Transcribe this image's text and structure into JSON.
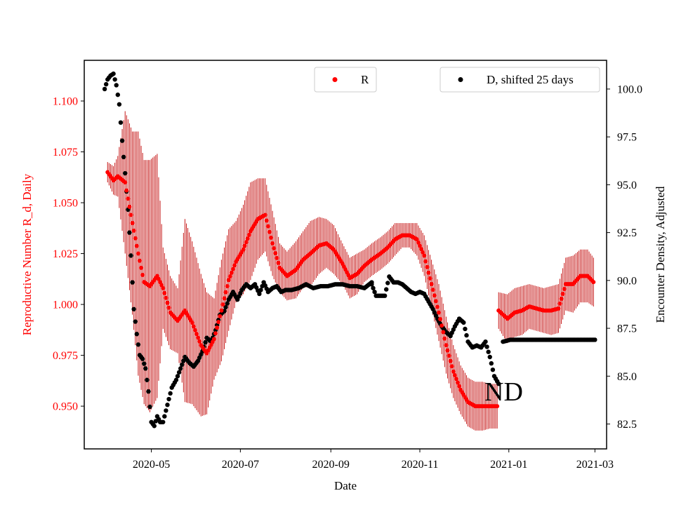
{
  "chart_data": {
    "type": "scatter",
    "xlabel": "Date",
    "ylabel_left": "Reproductive Number R_d, Daily",
    "ylabel_right": "Encounter Density, Adjusted",
    "x_range": [
      "2020-03-16",
      "2021-03-09"
    ],
    "ylim_left": [
      0.929,
      1.12
    ],
    "ylim_right": [
      81.2,
      101.5
    ],
    "x_ticks": [
      "2020-05",
      "2020-07",
      "2020-09",
      "2020-11",
      "2021-01",
      "2021-03"
    ],
    "y_ticks_left": [
      "0.950",
      "0.975",
      "1.000",
      "1.025",
      "1.050",
      "1.075",
      "1.100"
    ],
    "y_ticks_right": [
      "82.5",
      "85.0",
      "87.5",
      "90.0",
      "92.5",
      "95.0",
      "97.5",
      "100.0"
    ],
    "annotation": "ND",
    "legend": {
      "left": {
        "label": "R",
        "placement": "top-center"
      },
      "right": {
        "label": "D, shifted 25 days",
        "placement": "top-right"
      }
    },
    "colors": {
      "R": "#ff0000",
      "R_error": "#c00000",
      "D": "#000000",
      "left_axis": "#ff0000",
      "right_axis": "#000000"
    },
    "series": [
      {
        "name": "R",
        "axis": "left",
        "style": "dots_with_errorbars",
        "segments": [
          {
            "x": [
              "2020-04-01",
              "2020-04-05",
              "2020-04-08",
              "2020-04-13",
              "2020-04-18",
              "2020-04-22",
              "2020-04-26",
              "2020-04-30",
              "2020-05-05",
              "2020-05-09",
              "2020-05-14",
              "2020-05-19",
              "2020-05-24",
              "2020-05-29",
              "2020-06-04",
              "2020-06-08",
              "2020-06-13",
              "2020-06-18",
              "2020-06-23",
              "2020-06-28",
              "2020-07-03",
              "2020-07-08",
              "2020-07-13",
              "2020-07-18",
              "2020-07-23",
              "2020-07-28",
              "2020-08-02",
              "2020-08-08",
              "2020-08-13",
              "2020-08-18",
              "2020-08-24",
              "2020-08-29",
              "2020-09-03",
              "2020-09-09",
              "2020-09-14",
              "2020-09-19",
              "2020-09-24",
              "2020-09-29",
              "2020-10-05",
              "2020-10-10",
              "2020-10-15",
              "2020-10-20",
              "2020-10-25",
              "2020-10-30",
              "2020-11-04",
              "2020-11-09",
              "2020-11-14",
              "2020-11-19",
              "2020-11-24",
              "2020-11-29",
              "2020-12-04",
              "2020-12-09",
              "2020-12-14",
              "2020-12-19",
              "2020-12-24"
            ],
            "y": [
              1.065,
              1.061,
              1.063,
              1.06,
              1.04,
              1.025,
              1.011,
              1.009,
              1.014,
              1.008,
              0.996,
              0.992,
              0.997,
              0.991,
              0.98,
              0.976,
              0.983,
              0.997,
              1.012,
              1.021,
              1.027,
              1.036,
              1.042,
              1.044,
              1.03,
              1.018,
              1.014,
              1.017,
              1.022,
              1.025,
              1.029,
              1.03,
              1.027,
              1.02,
              1.013,
              1.015,
              1.019,
              1.022,
              1.025,
              1.028,
              1.032,
              1.034,
              1.034,
              1.032,
              1.024,
              1.01,
              0.996,
              0.98,
              0.967,
              0.958,
              0.952,
              0.95,
              0.95,
              0.95,
              0.95
            ],
            "err": [
              0.005,
              0.007,
              0.01,
              0.035,
              0.045,
              0.06,
              0.06,
              0.062,
              0.06,
              0.02,
              0.018,
              0.016,
              0.045,
              0.04,
              0.035,
              0.03,
              0.02,
              0.025,
              0.025,
              0.02,
              0.022,
              0.024,
              0.02,
              0.018,
              0.016,
              0.012,
              0.012,
              0.014,
              0.014,
              0.016,
              0.014,
              0.012,
              0.012,
              0.01,
              0.01,
              0.01,
              0.008,
              0.008,
              0.008,
              0.008,
              0.008,
              0.006,
              0.006,
              0.008,
              0.01,
              0.012,
              0.014,
              0.014,
              0.013,
              0.012,
              0.012,
              0.012,
              0.012,
              0.011,
              0.011
            ]
          },
          {
            "x": [
              "2020-12-25",
              "2020-12-31",
              "2021-01-05",
              "2021-01-10",
              "2021-01-15",
              "2021-01-20",
              "2021-01-25",
              "2021-01-30",
              "2021-02-04",
              "2021-02-09",
              "2021-02-14",
              "2021-02-19",
              "2021-02-24",
              "2021-02-28"
            ],
            "y": [
              0.997,
              0.993,
              0.996,
              0.997,
              0.999,
              0.998,
              0.997,
              0.997,
              0.998,
              1.01,
              1.01,
              1.014,
              1.014,
              1.011
            ],
            "err": [
              0.009,
              0.012,
              0.012,
              0.012,
              0.011,
              0.011,
              0.011,
              0.012,
              0.012,
              0.013,
              0.014,
              0.013,
              0.013,
              0.012
            ]
          }
        ]
      },
      {
        "name": "D, shifted 25 days",
        "axis": "right",
        "style": "dots",
        "segments": [
          {
            "x": [
              "2020-03-30",
              "2020-04-01",
              "2020-04-03",
              "2020-04-05",
              "2020-04-07",
              "2020-04-09",
              "2020-04-11",
              "2020-04-13",
              "2020-04-15",
              "2020-04-17",
              "2020-04-19",
              "2020-04-21",
              "2020-04-23",
              "2020-04-25",
              "2020-04-27",
              "2020-04-29",
              "2020-05-01",
              "2020-05-03",
              "2020-05-05",
              "2020-05-07",
              "2020-05-09",
              "2020-05-11",
              "2020-05-13",
              "2020-05-15",
              "2020-05-18",
              "2020-05-21",
              "2020-05-24",
              "2020-05-27",
              "2020-05-30",
              "2020-06-02",
              "2020-06-05",
              "2020-06-08",
              "2020-06-11",
              "2020-06-14",
              "2020-06-17",
              "2020-06-20",
              "2020-06-23",
              "2020-06-26",
              "2020-06-29",
              "2020-07-02",
              "2020-07-05",
              "2020-07-08",
              "2020-07-11",
              "2020-07-14",
              "2020-07-17",
              "2020-07-20",
              "2020-07-23",
              "2020-07-26",
              "2020-07-29",
              "2020-08-01",
              "2020-08-05",
              "2020-08-10",
              "2020-08-15",
              "2020-08-20",
              "2020-08-25",
              "2020-08-30",
              "2020-09-04",
              "2020-09-09",
              "2020-09-14",
              "2020-09-19",
              "2020-09-24",
              "2020-09-29"
            ],
            "y": [
              100.0,
              100.5,
              100.7,
              100.8,
              100.2,
              99.2,
              97.3,
              95.6,
              93.7,
              91.3,
              88.5,
              87.2,
              86.1,
              85.9,
              85.4,
              84.2,
              82.6,
              82.4,
              82.9,
              82.6,
              82.6,
              83.2,
              83.8,
              84.4,
              84.8,
              85.4,
              86.0,
              85.7,
              85.5,
              85.8,
              86.3,
              87.0,
              86.8,
              87.4,
              88.2,
              88.4,
              89.0,
              89.4,
              89.0,
              89.5,
              89.8,
              89.6,
              89.8,
              89.3,
              89.9,
              89.4,
              89.6,
              89.7,
              89.4,
              89.5,
              89.5,
              89.6,
              89.8,
              89.6,
              89.7,
              89.7,
              89.8,
              89.8,
              89.7,
              89.7,
              89.6,
              89.9
            ]
          },
          {
            "x": [
              "2020-09-29",
              "2020-10-02",
              "2020-10-05",
              "2020-10-08",
              "2020-10-11",
              "2020-10-14",
              "2020-10-17",
              "2020-10-20",
              "2020-10-23",
              "2020-10-26",
              "2020-10-29",
              "2020-11-01",
              "2020-11-04",
              "2020-11-07",
              "2020-11-10",
              "2020-11-13",
              "2020-11-16",
              "2020-11-19",
              "2020-11-22",
              "2020-11-25",
              "2020-11-28",
              "2020-12-01",
              "2020-12-04",
              "2020-12-07",
              "2020-12-10",
              "2020-12-13",
              "2020-12-16",
              "2020-12-19",
              "2020-12-22",
              "2020-12-25"
            ],
            "y": [
              89.8,
              89.2,
              89.2,
              89.2,
              90.2,
              89.9,
              89.9,
              89.8,
              89.6,
              89.4,
              89.3,
              89.4,
              89.3,
              88.9,
              88.5,
              88.0,
              87.6,
              87.3,
              87.1,
              87.6,
              88.0,
              87.8,
              86.8,
              86.5,
              86.6,
              86.5,
              86.8,
              86.0,
              85.0,
              84.6
            ]
          },
          {
            "x": [
              "2020-12-28",
              "2021-01-02",
              "2021-01-07",
              "2021-01-12",
              "2021-01-17",
              "2021-01-22",
              "2021-01-27",
              "2021-02-01",
              "2021-02-06",
              "2021-02-11",
              "2021-02-16",
              "2021-02-21",
              "2021-02-26",
              "2021-03-01"
            ],
            "y": [
              86.8,
              86.9,
              86.9,
              86.9,
              86.9,
              86.9,
              86.9,
              86.9,
              86.9,
              86.9,
              86.9,
              86.9,
              86.9,
              86.9
            ]
          }
        ]
      }
    ]
  }
}
